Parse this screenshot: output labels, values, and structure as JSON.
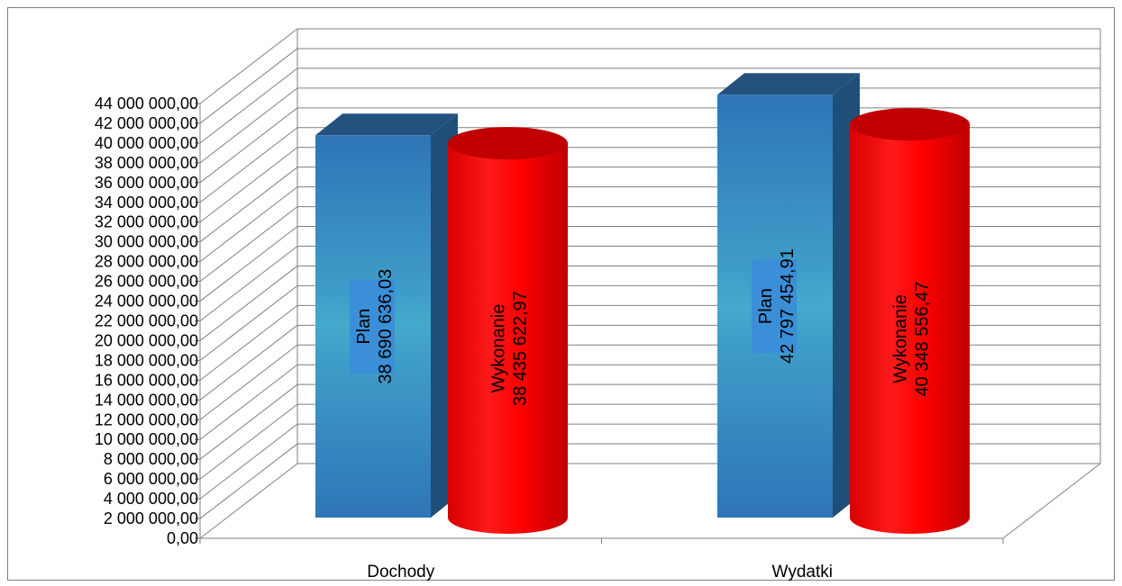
{
  "chart_data": {
    "type": "bar",
    "style": "3d-clustered-column",
    "categories": [
      "Dochody",
      "Wydatki"
    ],
    "series": [
      {
        "name": "Plan",
        "shape": "box",
        "color": "#2e75b6",
        "values": [
          38690636.03,
          42797454.91
        ],
        "value_labels": [
          "38 690 636,03",
          "42 797 454,91"
        ]
      },
      {
        "name": "Wykonanie",
        "shape": "cylinder",
        "color": "#ff0000",
        "values": [
          38435622.97,
          40348556.47
        ],
        "value_labels": [
          "38 435 622,97",
          "40 348 556,47"
        ]
      }
    ],
    "ylim": [
      0,
      44000000
    ],
    "ytick_step": 2000000,
    "ytick_labels": [
      "0,00",
      "2 000 000,00",
      "4 000 000,00",
      "6 000 000,00",
      "8 000 000,00",
      "10 000 000,00",
      "12 000 000,00",
      "14 000 000,00",
      "16 000 000,00",
      "18 000 000,00",
      "20 000 000,00",
      "22 000 000,00",
      "24 000 000,00",
      "26 000 000,00",
      "28 000 000,00",
      "30 000 000,00",
      "32 000 000,00",
      "34 000 000,00",
      "36 000 000,00",
      "38 000 000,00",
      "40 000 000,00",
      "42 000 000,00",
      "44 000 000,00"
    ],
    "grid": true,
    "legend": "none",
    "title": "",
    "xlabel": "",
    "ylabel": ""
  }
}
